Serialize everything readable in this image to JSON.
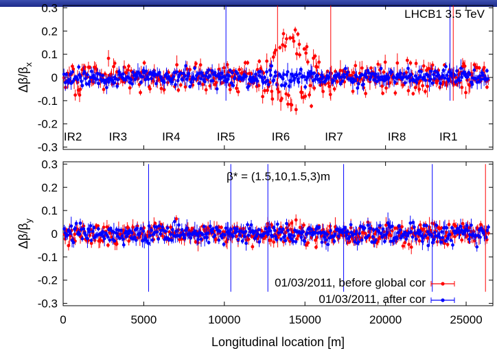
{
  "chart_data": {
    "type": "scatter",
    "x": {
      "label": "Longitudinal location [m]",
      "range": [
        0,
        26659
      ],
      "ticks": [
        "0",
        "5000",
        "10000",
        "15000",
        "20000",
        "25000"
      ]
    },
    "panels": [
      {
        "ylabel": "Δβ/β",
        "ylabel_sub": "x",
        "ylim": [
          -0.31,
          0.31
        ],
        "ticks": [
          "0.3",
          "0.2",
          "0.1",
          "0",
          "-0.1",
          "-0.2",
          "-0.3"
        ],
        "annotation": "LHCB1 3.5 TeV",
        "ir_labels": [
          {
            "label": "IR2",
            "x": 600
          },
          {
            "label": "IR3",
            "x": 3400
          },
          {
            "label": "IR4",
            "x": 6700
          },
          {
            "label": "IR5",
            "x": 10100
          },
          {
            "label": "IR6",
            "x": 13500
          },
          {
            "label": "IR7",
            "x": 16800
          },
          {
            "label": "IR8",
            "x": 20700
          },
          {
            "label": "IR1",
            "x": 23900
          }
        ]
      },
      {
        "ylabel": "Δβ/β",
        "ylabel_sub": "y",
        "ylim": [
          -0.31,
          0.31
        ],
        "ticks": [
          "0.3",
          "0.2",
          "0.1",
          "0",
          "-0.1",
          "-0.2",
          "-0.3"
        ],
        "annotation": "β* = (1.5,10,1.5,3)m"
      }
    ],
    "series": [
      {
        "name": "01/03/2011, before global cor",
        "color": "#ff0000"
      },
      {
        "name": "01/03/2011, after cor",
        "color": "#0000ff"
      }
    ],
    "scatter_model": {
      "before_x": {
        "noise_sigma": 0.06,
        "bump": {
          "from": 12000,
          "to": 16500,
          "value": 0.18
        }
      },
      "after_x": {
        "noise_sigma": 0.035
      },
      "before_y": {
        "noise_sigma": 0.045
      },
      "after_y": {
        "noise_sigma": 0.04
      }
    },
    "legend_position": "bottom-right",
    "grid": false
  }
}
